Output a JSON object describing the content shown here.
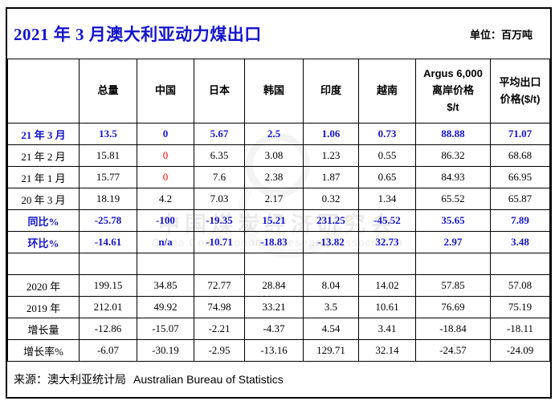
{
  "title": "2021 年 3 月澳大利亚动力煤出口",
  "unit_label": "单位：百万吨",
  "source": {
    "zh": "来源：澳大利亚统计局",
    "en": "Australian Bureau of Statistics"
  },
  "watermark": {
    "zh": "中国煤炭经济研究会",
    "en": "China Coal Economic Research Association"
  },
  "colors": {
    "title_blue": "#1414cc",
    "highlight_blue": "#1414cc",
    "negative_red": "#ff0000",
    "border": "#000000"
  },
  "table": {
    "headers": [
      "",
      "总量",
      "中国",
      "日本",
      "韩国",
      "印度",
      "越南",
      "Argus 6,000\n离岸价格\n$/t",
      "平均出口\n价格($/t)"
    ],
    "rows": [
      {
        "label": "21 年 3 月",
        "style": "blue",
        "values": [
          "13.5",
          "0",
          "5.67",
          "2.5",
          "1.06",
          "0.73",
          "88.88",
          "71.07"
        ],
        "red_cols": [
          1
        ]
      },
      {
        "label": "21 年 2 月",
        "style": "normal",
        "values": [
          "15.81",
          "0",
          "6.35",
          "3.08",
          "1.23",
          "0.55",
          "86.32",
          "68.68"
        ],
        "red_cols": [
          1
        ]
      },
      {
        "label": "21 年 1 月",
        "style": "normal",
        "values": [
          "15.77",
          "0",
          "7.6",
          "2.38",
          "1.87",
          "0.65",
          "84.93",
          "66.95"
        ],
        "red_cols": [
          1
        ]
      },
      {
        "label": "20 年 3 月",
        "style": "normal",
        "values": [
          "18.19",
          "4.2",
          "7.03",
          "2.17",
          "0.32",
          "1.34",
          "65.52",
          "65.87"
        ],
        "red_cols": []
      },
      {
        "label": "同比%",
        "style": "blue",
        "values": [
          "-25.78",
          "-100",
          "-19.35",
          "15.21",
          "231.25",
          "-45.52",
          "35.65",
          "7.89"
        ],
        "red_cols": []
      },
      {
        "label": "环比%",
        "style": "blue",
        "values": [
          "-14.61",
          "n/a",
          "-10.71",
          "-18.83",
          "-13.82",
          "32.73",
          "2.97",
          "3.48"
        ],
        "red_cols": []
      },
      {
        "label": "",
        "style": "empty",
        "values": [
          "",
          "",
          "",
          "",
          "",
          "",
          "",
          ""
        ],
        "red_cols": []
      },
      {
        "label": "2020 年",
        "style": "normal",
        "values": [
          "199.15",
          "34.85",
          "72.77",
          "28.84",
          "8.04",
          "14.02",
          "57.85",
          "57.08"
        ],
        "red_cols": []
      },
      {
        "label": "2019 年",
        "style": "normal",
        "values": [
          "212.01",
          "49.92",
          "74.98",
          "33.21",
          "3.5",
          "10.61",
          "76.69",
          "75.19"
        ],
        "red_cols": []
      },
      {
        "label": "增长量",
        "style": "normal",
        "values": [
          "-12.86",
          "-15.07",
          "-2.21",
          "-4.37",
          "4.54",
          "3.41",
          "-18.84",
          "-18.11"
        ],
        "red_cols": []
      },
      {
        "label": "增长率%",
        "style": "normal",
        "values": [
          "-6.07",
          "-30.19",
          "-2.95",
          "-13.16",
          "129.71",
          "32.14",
          "-24.57",
          "-24.09"
        ],
        "red_cols": []
      }
    ]
  },
  "chart_data": {
    "type": "table",
    "title": "2021 年 3 月澳大利亚动力煤出口",
    "unit": "百万吨",
    "columns": [
      "总量",
      "中国",
      "日本",
      "韩国",
      "印度",
      "越南",
      "Argus 6,000 离岸价格 $/t",
      "平均出口价格($/t)"
    ],
    "row_labels": [
      "21 年 3 月",
      "21 年 2 月",
      "21 年 1 月",
      "20 年 3 月",
      "同比%",
      "环比%",
      "2020 年",
      "2019 年",
      "增长量",
      "增长率%"
    ],
    "values": [
      [
        13.5,
        0,
        5.67,
        2.5,
        1.06,
        0.73,
        88.88,
        71.07
      ],
      [
        15.81,
        0,
        6.35,
        3.08,
        1.23,
        0.55,
        86.32,
        68.68
      ],
      [
        15.77,
        0,
        7.6,
        2.38,
        1.87,
        0.65,
        84.93,
        66.95
      ],
      [
        18.19,
        4.2,
        7.03,
        2.17,
        0.32,
        1.34,
        65.52,
        65.87
      ],
      [
        -25.78,
        -100,
        -19.35,
        15.21,
        231.25,
        -45.52,
        35.65,
        7.89
      ],
      [
        -14.61,
        null,
        -10.71,
        -18.83,
        -13.82,
        32.73,
        2.97,
        3.48
      ],
      [
        199.15,
        34.85,
        72.77,
        28.84,
        8.04,
        14.02,
        57.85,
        57.08
      ],
      [
        212.01,
        49.92,
        74.98,
        33.21,
        3.5,
        10.61,
        76.69,
        75.19
      ],
      [
        -12.86,
        -15.07,
        -2.21,
        -4.37,
        4.54,
        3.41,
        -18.84,
        -18.11
      ],
      [
        -6.07,
        -30.19,
        -2.95,
        -13.16,
        129.71,
        32.14,
        -24.57,
        -24.09
      ]
    ],
    "source": "来源：澳大利亚统计局 Australian Bureau of Statistics"
  }
}
